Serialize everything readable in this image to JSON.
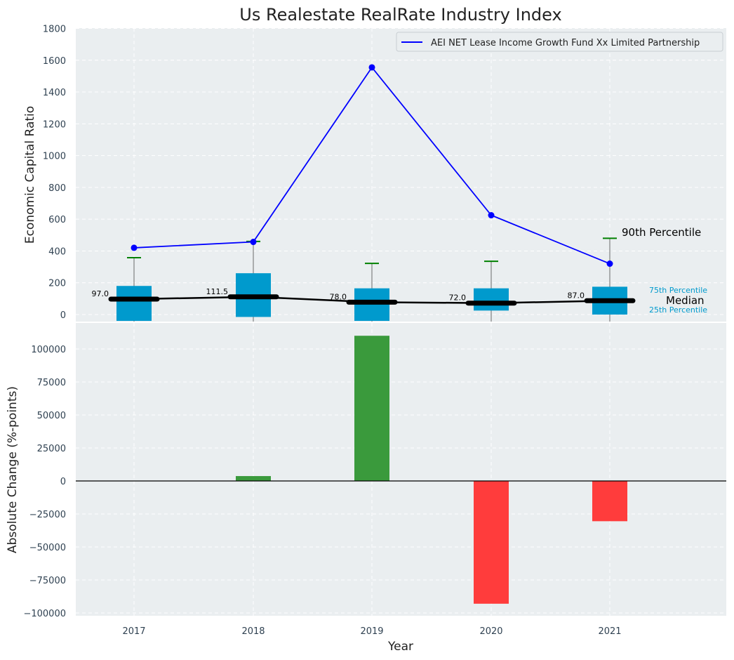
{
  "chart_data": [
    {
      "type": "line",
      "title": "Us Realestate RealRate Industry Index",
      "ylabel": "Economic Capital Ratio",
      "ylim": [
        -50,
        1800
      ],
      "yticks": [
        0,
        200,
        400,
        600,
        800,
        1000,
        1200,
        1400,
        1600,
        1800
      ],
      "categories": [
        "2017",
        "2018",
        "2019",
        "2020",
        "2021"
      ],
      "grid": true,
      "legend_position": "top-right",
      "series": [
        {
          "name": "AEI NET Lease Income Growth Fund Xx Limited Partnership",
          "values": [
            420,
            457,
            1555,
            625,
            320
          ],
          "color": "#0000ff"
        }
      ],
      "industry_distribution": {
        "p25": [
          -40,
          -15,
          -40,
          25,
          0
        ],
        "p75": [
          180,
          260,
          165,
          165,
          175
        ],
        "median": [
          97.0,
          111.5,
          78.0,
          72.0,
          87.0
        ],
        "median_labels": [
          "97.0",
          "111.5",
          "78.0",
          "72.0",
          "87.0"
        ],
        "p90": [
          358,
          460,
          322,
          335,
          480
        ],
        "box_color": "#009acd",
        "p90_color": "#008000"
      },
      "annotations": {
        "p90": "90th Percentile",
        "p75": "75th Percentile",
        "median": "Median",
        "p25": "25th Percentile"
      }
    },
    {
      "type": "bar",
      "ylabel": "Absolute Change (%-points)",
      "xlabel": "Year",
      "ylim": [
        -102000,
        115000
      ],
      "yticks": [
        -100000,
        -75000,
        -50000,
        -25000,
        0,
        25000,
        50000,
        75000,
        100000
      ],
      "ytick_labels": [
        "−100000",
        "−75000",
        "−50000",
        "−25000",
        "0",
        "25000",
        "50000",
        "75000",
        "100000"
      ],
      "categories": [
        "2017",
        "2018",
        "2019",
        "2020",
        "2021"
      ],
      "values": [
        0,
        3700,
        110000,
        -93000,
        -30500
      ],
      "positive_color": "#3a9a3c",
      "negative_color": "#ff3c3c",
      "grid": true
    }
  ]
}
